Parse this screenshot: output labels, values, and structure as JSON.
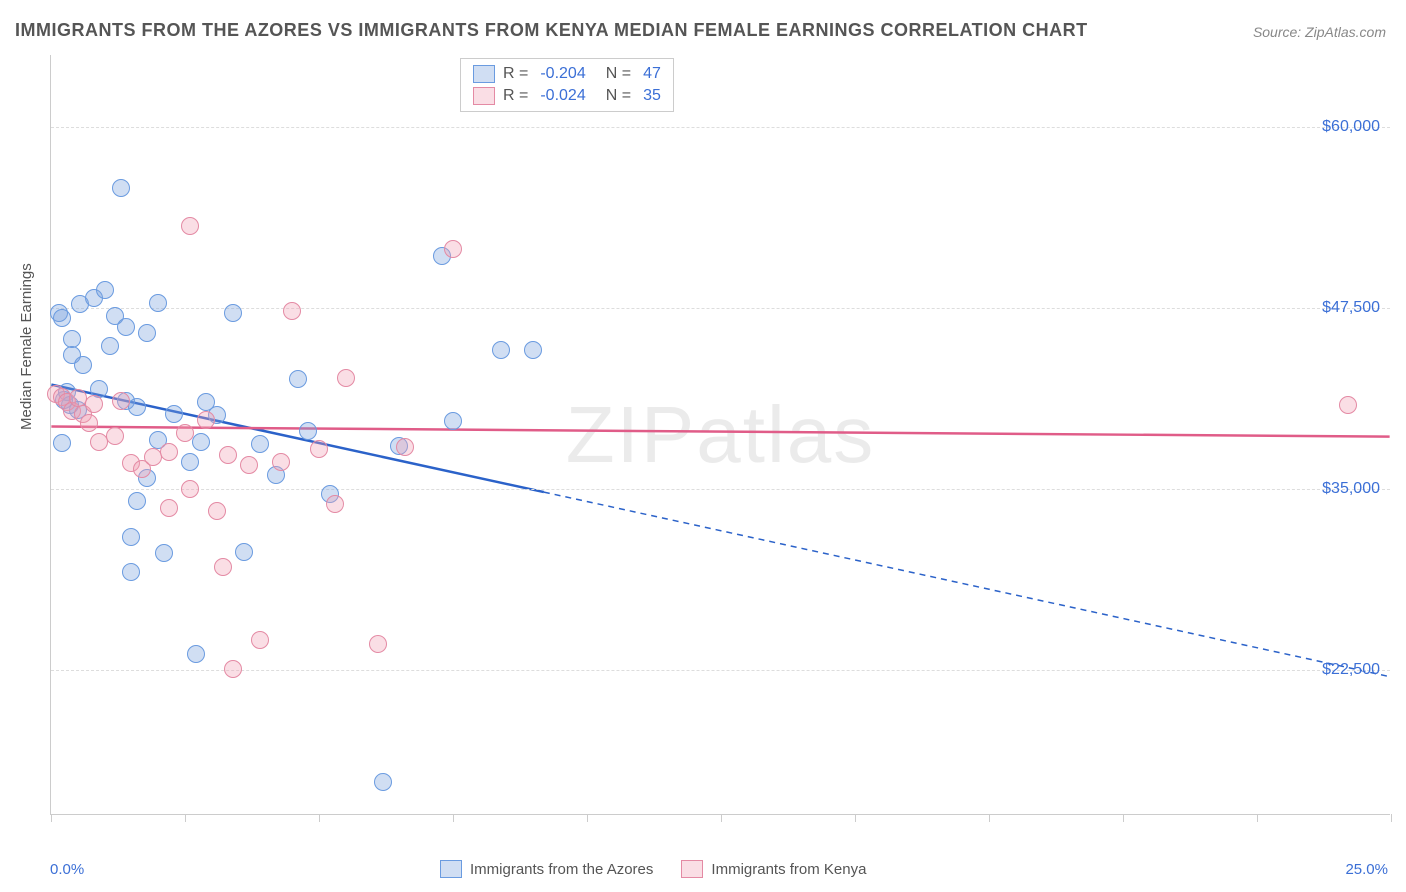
{
  "title": "IMMIGRANTS FROM THE AZORES VS IMMIGRANTS FROM KENYA MEDIAN FEMALE EARNINGS CORRELATION CHART",
  "source": "Source: ZipAtlas.com",
  "watermark": "ZIPatlas",
  "chart": {
    "type": "scatter",
    "xlim": [
      0,
      25
    ],
    "ylim": [
      12500,
      65000
    ],
    "xaxis_min_label": "0.0%",
    "xaxis_max_label": "25.0%",
    "yaxis_title": "Median Female Earnings",
    "yticks": [
      22500,
      35000,
      47500,
      60000
    ],
    "ytick_labels": [
      "$22,500",
      "$35,000",
      "$47,500",
      "$60,000"
    ],
    "xticks": [
      0,
      2.5,
      5,
      7.5,
      10,
      12.5,
      15,
      17.5,
      20,
      22.5,
      25
    ],
    "grid_color": "#dddddd",
    "background_color": "#ffffff",
    "title_fontsize": 18,
    "label_fontsize": 15,
    "point_radius": 9,
    "series": [
      {
        "name": "Immigrants from the Azores",
        "color_fill": "rgba(120,160,220,0.35)",
        "color_stroke": "#6a9be0",
        "r": "-0.204",
        "n": "47",
        "trend": {
          "x1": 0,
          "y1": 42200,
          "x2": 25,
          "y2": 22000,
          "solid_until_x": 9.2,
          "color": "#2b62c9",
          "width": 2.5
        },
        "points": [
          [
            0.15,
            47200
          ],
          [
            0.2,
            46800
          ],
          [
            0.4,
            44300
          ],
          [
            0.3,
            41700
          ],
          [
            0.35,
            40800
          ],
          [
            0.25,
            41200
          ],
          [
            0.5,
            40500
          ],
          [
            0.2,
            38200
          ],
          [
            0.6,
            43600
          ],
          [
            0.4,
            45400
          ],
          [
            0.55,
            47800
          ],
          [
            0.8,
            48200
          ],
          [
            1.0,
            48800
          ],
          [
            0.9,
            41900
          ],
          [
            1.1,
            44900
          ],
          [
            1.3,
            55800
          ],
          [
            1.2,
            47000
          ],
          [
            1.4,
            46200
          ],
          [
            1.4,
            41100
          ],
          [
            1.6,
            40700
          ],
          [
            1.8,
            45800
          ],
          [
            1.8,
            35800
          ],
          [
            1.5,
            31700
          ],
          [
            1.5,
            29300
          ],
          [
            1.6,
            34200
          ],
          [
            2.0,
            38400
          ],
          [
            2.3,
            40200
          ],
          [
            2.0,
            47900
          ],
          [
            2.1,
            30600
          ],
          [
            2.6,
            36900
          ],
          [
            2.8,
            38300
          ],
          [
            2.9,
            41000
          ],
          [
            3.1,
            40100
          ],
          [
            2.7,
            23600
          ],
          [
            3.4,
            47200
          ],
          [
            3.6,
            30700
          ],
          [
            3.9,
            38100
          ],
          [
            4.2,
            36000
          ],
          [
            4.6,
            42600
          ],
          [
            4.8,
            39000
          ],
          [
            5.2,
            34700
          ],
          [
            6.2,
            14800
          ],
          [
            6.5,
            38000
          ],
          [
            7.3,
            51100
          ],
          [
            7.5,
            39700
          ],
          [
            8.4,
            44600
          ],
          [
            9.0,
            44600
          ]
        ]
      },
      {
        "name": "Immigrants from Kenya",
        "color_fill": "rgba(240,160,180,0.35)",
        "color_stroke": "#e48aa4",
        "r": "-0.024",
        "n": "35",
        "trend": {
          "x1": 0,
          "y1": 39300,
          "x2": 25,
          "y2": 38600,
          "solid_until_x": 25,
          "color": "#e05c88",
          "width": 2.5
        },
        "points": [
          [
            0.1,
            41600
          ],
          [
            0.2,
            41400
          ],
          [
            0.3,
            41000
          ],
          [
            0.4,
            40400
          ],
          [
            0.5,
            41300
          ],
          [
            0.6,
            40200
          ],
          [
            0.7,
            39600
          ],
          [
            0.8,
            40900
          ],
          [
            0.9,
            38300
          ],
          [
            1.2,
            38700
          ],
          [
            1.3,
            41100
          ],
          [
            1.5,
            36800
          ],
          [
            1.7,
            36400
          ],
          [
            1.9,
            37200
          ],
          [
            2.2,
            37600
          ],
          [
            2.2,
            33700
          ],
          [
            2.5,
            38900
          ],
          [
            2.6,
            35000
          ],
          [
            2.6,
            53200
          ],
          [
            2.9,
            39800
          ],
          [
            3.1,
            33500
          ],
          [
            3.2,
            29600
          ],
          [
            3.3,
            37400
          ],
          [
            3.4,
            22600
          ],
          [
            3.7,
            36700
          ],
          [
            3.9,
            24600
          ],
          [
            4.3,
            36900
          ],
          [
            4.5,
            47300
          ],
          [
            5.0,
            37800
          ],
          [
            5.3,
            34000
          ],
          [
            5.5,
            42700
          ],
          [
            6.1,
            24300
          ],
          [
            6.6,
            37900
          ],
          [
            7.5,
            51600
          ],
          [
            24.2,
            40800
          ]
        ]
      }
    ]
  },
  "legend_top_labels": {
    "r": "R =",
    "n": "N ="
  },
  "legend_bottom_labels": [
    "Immigrants from the Azores",
    "Immigrants from Kenya"
  ]
}
